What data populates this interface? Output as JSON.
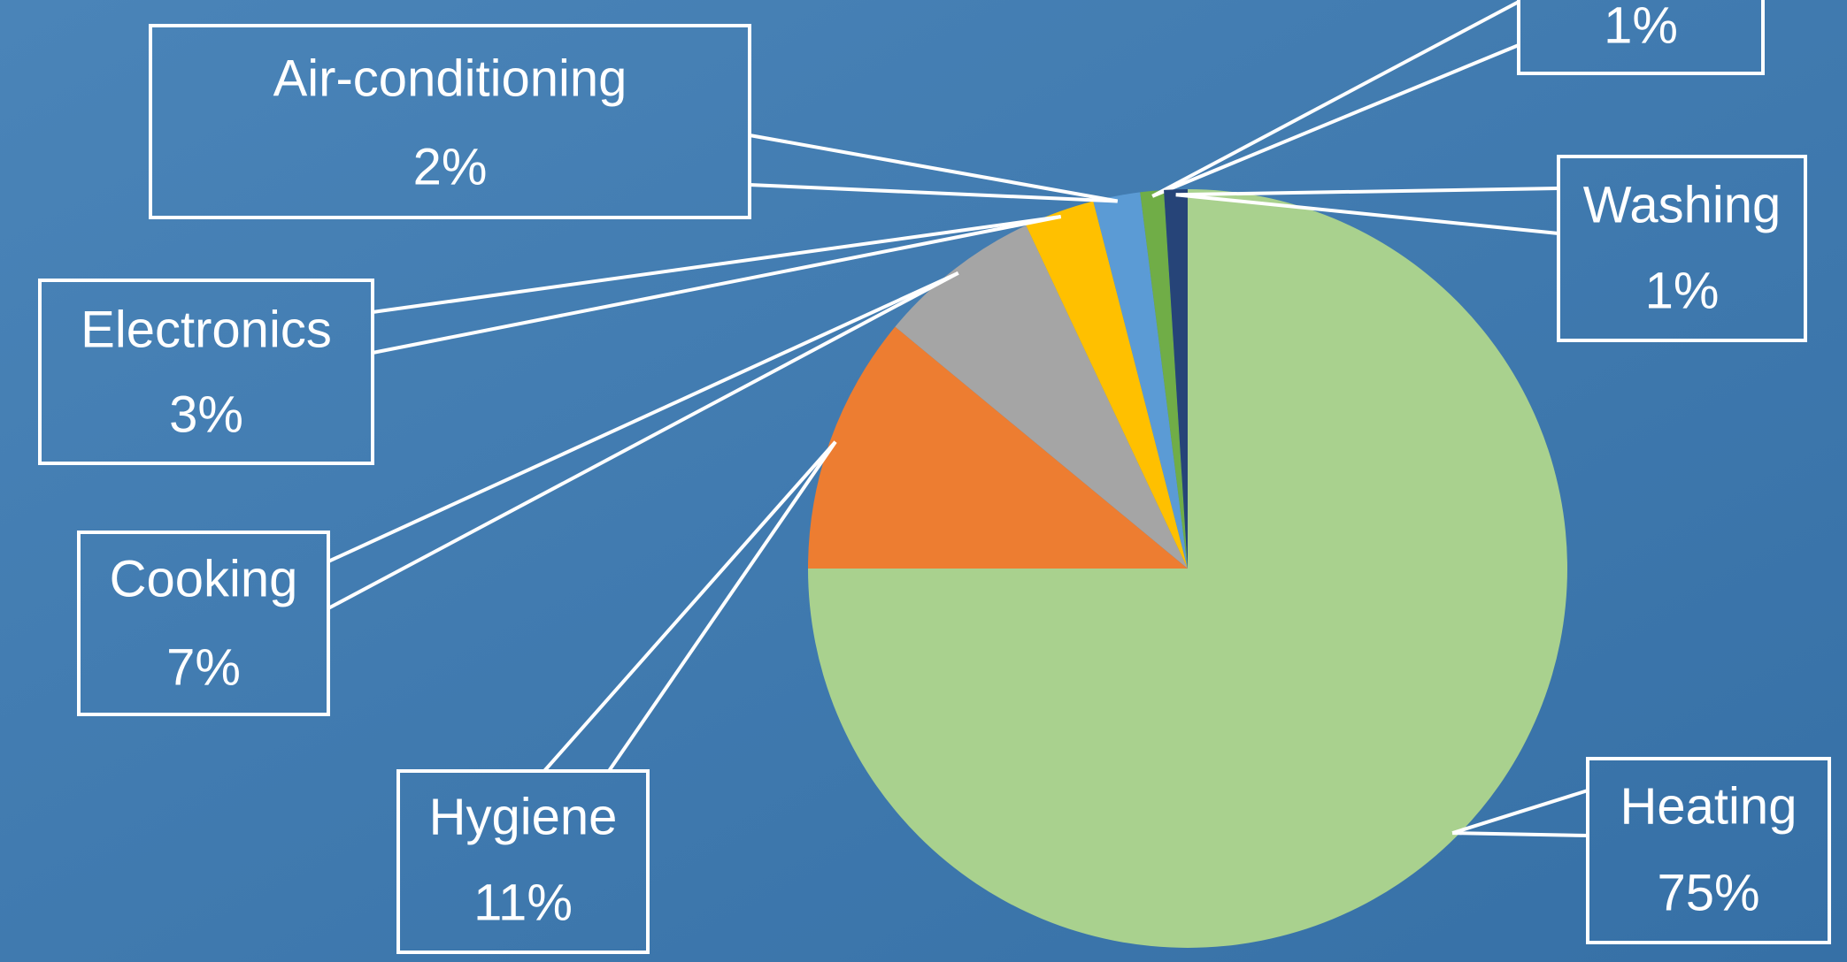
{
  "chart_data": {
    "type": "pie",
    "categories": [
      "Heating",
      "Hygiene",
      "Cooking",
      "Electronics",
      "Air-conditioning",
      null,
      "Washing"
    ],
    "values": [
      75,
      11,
      7,
      3,
      2,
      1,
      1
    ],
    "value_labels": [
      "75%",
      "11%",
      "7%",
      "3%",
      "2%",
      "1%",
      "1%"
    ],
    "colors": [
      "#a9d18e",
      "#ed7d31",
      "#a5a5a5",
      "#ffc000",
      "#5b9bd5",
      "#70ad47",
      "#264478"
    ]
  }
}
